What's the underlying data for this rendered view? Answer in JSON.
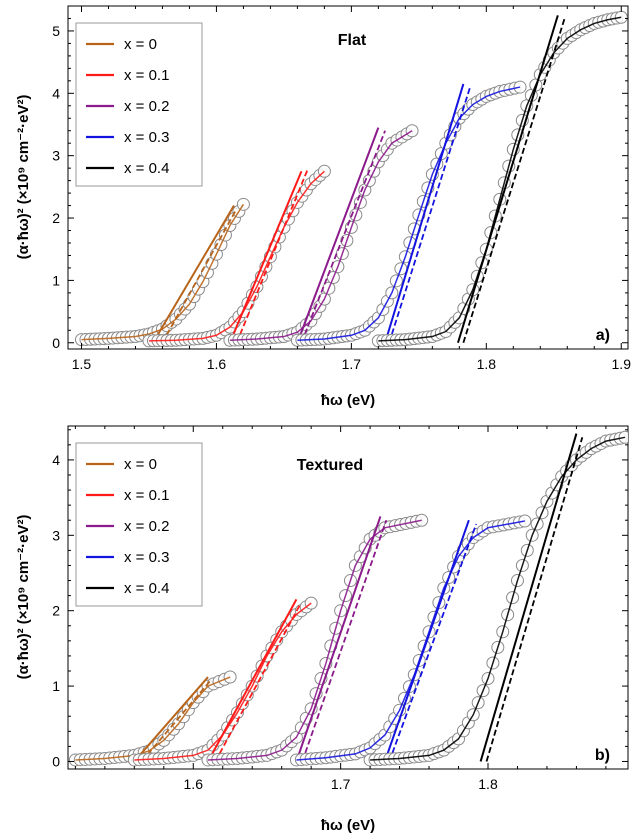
{
  "chart_data": [
    {
      "type": "scatter",
      "title": "Flat",
      "panel_label": "a)",
      "xlabel": "ħω (eV)",
      "ylabel": "(α·ħω)² (×10⁹ cm⁻²·eV²)",
      "xlim": [
        1.49,
        1.905
      ],
      "ylim": [
        -0.1,
        5.4
      ],
      "xticks": [
        1.5,
        1.6,
        1.7,
        1.8,
        1.9
      ],
      "xtick_labels": [
        "1.5",
        "1.6",
        "1.7",
        "1.8",
        "1.9"
      ],
      "yticks": [
        0,
        1,
        2,
        3,
        4,
        5
      ],
      "ytick_labels": [
        "0",
        "1",
        "2",
        "3",
        "4",
        "5"
      ],
      "legend_position": "top-left",
      "grid": false,
      "series": [
        {
          "name": "x = 0",
          "color": "#b8651b",
          "points": [
            [
              1.5,
              0.05
            ],
            [
              1.52,
              0.07
            ],
            [
              1.54,
              0.1
            ],
            [
              1.55,
              0.14
            ],
            [
              1.56,
              0.22
            ],
            [
              1.57,
              0.38
            ],
            [
              1.58,
              0.62
            ],
            [
              1.59,
              0.98
            ],
            [
              1.6,
              1.42
            ],
            [
              1.61,
              1.88
            ],
            [
              1.62,
              2.22
            ]
          ],
          "fit_solid": [
            [
              1.553,
              0.0
            ],
            [
              1.613,
              2.2
            ]
          ],
          "fit_dashed": [
            [
              1.56,
              0.0
            ],
            [
              1.615,
              2.15
            ]
          ]
        },
        {
          "name": "x = 0.1",
          "color": "#ff1a1a",
          "points": [
            [
              1.55,
              0.03
            ],
            [
              1.57,
              0.04
            ],
            [
              1.59,
              0.07
            ],
            [
              1.6,
              0.12
            ],
            [
              1.61,
              0.25
            ],
            [
              1.62,
              0.5
            ],
            [
              1.63,
              0.9
            ],
            [
              1.64,
              1.38
            ],
            [
              1.65,
              1.85
            ],
            [
              1.66,
              2.25
            ],
            [
              1.67,
              2.55
            ],
            [
              1.68,
              2.75
            ]
          ],
          "fit_solid": [
            [
              1.61,
              0.0
            ],
            [
              1.663,
              2.75
            ]
          ],
          "fit_dashed": [
            [
              1.615,
              0.0
            ],
            [
              1.668,
              2.8
            ]
          ]
        },
        {
          "name": "x = 0.2",
          "color": "#8b1a8b",
          "points": [
            [
              1.61,
              0.04
            ],
            [
              1.63,
              0.06
            ],
            [
              1.65,
              0.1
            ],
            [
              1.66,
              0.17
            ],
            [
              1.67,
              0.35
            ],
            [
              1.68,
              0.7
            ],
            [
              1.69,
              1.22
            ],
            [
              1.7,
              1.85
            ],
            [
              1.71,
              2.45
            ],
            [
              1.72,
              2.9
            ],
            [
              1.73,
              3.2
            ],
            [
              1.745,
              3.4
            ]
          ],
          "fit_solid": [
            [
              1.66,
              0.0
            ],
            [
              1.72,
              3.45
            ]
          ],
          "fit_dashed": [
            [
              1.663,
              0.0
            ],
            [
              1.725,
              3.4
            ]
          ]
        },
        {
          "name": "x = 0.3",
          "color": "#1414e0",
          "points": [
            [
              1.66,
              0.04
            ],
            [
              1.68,
              0.06
            ],
            [
              1.7,
              0.12
            ],
            [
              1.71,
              0.2
            ],
            [
              1.72,
              0.4
            ],
            [
              1.73,
              0.8
            ],
            [
              1.74,
              1.38
            ],
            [
              1.75,
              2.05
            ],
            [
              1.76,
              2.7
            ],
            [
              1.77,
              3.2
            ],
            [
              1.78,
              3.6
            ],
            [
              1.79,
              3.82
            ],
            [
              1.8,
              3.95
            ],
            [
              1.81,
              4.03
            ],
            [
              1.825,
              4.1
            ]
          ],
          "fit_solid": [
            [
              1.725,
              0.0
            ],
            [
              1.783,
              4.15
            ]
          ],
          "fit_dashed": [
            [
              1.728,
              0.0
            ],
            [
              1.788,
              4.1
            ]
          ]
        },
        {
          "name": "x = 0.4",
          "color": "#000000",
          "points": [
            [
              1.72,
              0.03
            ],
            [
              1.74,
              0.05
            ],
            [
              1.76,
              0.1
            ],
            [
              1.77,
              0.18
            ],
            [
              1.78,
              0.4
            ],
            [
              1.79,
              0.85
            ],
            [
              1.8,
              1.5
            ],
            [
              1.81,
              2.3
            ],
            [
              1.82,
              3.1
            ],
            [
              1.83,
              3.8
            ],
            [
              1.84,
              4.3
            ],
            [
              1.85,
              4.65
            ],
            [
              1.86,
              4.88
            ],
            [
              1.87,
              5.02
            ],
            [
              1.88,
              5.12
            ],
            [
              1.89,
              5.18
            ],
            [
              1.9,
              5.22
            ]
          ],
          "fit_solid": [
            [
              1.779,
              0.0
            ],
            [
              1.853,
              5.25
            ]
          ],
          "fit_dashed": [
            [
              1.783,
              0.0
            ],
            [
              1.858,
              5.2
            ]
          ]
        }
      ]
    },
    {
      "type": "scatter",
      "title": "Textured",
      "panel_label": "b)",
      "xlabel": "ħω (eV)",
      "ylabel": "(α·ħω)² (×10⁹ cm⁻²·eV²)",
      "xlim": [
        1.515,
        1.895
      ],
      "ylim": [
        -0.1,
        4.45
      ],
      "xticks": [
        1.6,
        1.7,
        1.8
      ],
      "xtick_labels": [
        "1.6",
        "1.7",
        "1.8"
      ],
      "yticks": [
        0,
        1,
        2,
        3,
        4
      ],
      "ytick_labels": [
        "0",
        "1",
        "2",
        "3",
        "4"
      ],
      "legend_position": "top-left",
      "grid": false,
      "series": [
        {
          "name": "x = 0",
          "color": "#b8651b",
          "points": [
            [
              1.52,
              0.02
            ],
            [
              1.54,
              0.04
            ],
            [
              1.56,
              0.08
            ],
            [
              1.57,
              0.14
            ],
            [
              1.58,
              0.28
            ],
            [
              1.59,
              0.5
            ],
            [
              1.6,
              0.78
            ],
            [
              1.61,
              1.0
            ],
            [
              1.625,
              1.12
            ]
          ],
          "fit_solid": [
            [
              1.56,
              0.0
            ],
            [
              1.61,
              1.12
            ]
          ],
          "fit_dashed": [
            [
              1.565,
              0.0
            ],
            [
              1.612,
              1.08
            ]
          ]
        },
        {
          "name": "x = 0.1",
          "color": "#ff1a1a",
          "points": [
            [
              1.56,
              0.02
            ],
            [
              1.58,
              0.04
            ],
            [
              1.6,
              0.08
            ],
            [
              1.61,
              0.15
            ],
            [
              1.62,
              0.35
            ],
            [
              1.63,
              0.65
            ],
            [
              1.64,
              1.0
            ],
            [
              1.65,
              1.4
            ],
            [
              1.66,
              1.72
            ],
            [
              1.67,
              1.95
            ],
            [
              1.68,
              2.1
            ]
          ],
          "fit_solid": [
            [
              1.61,
              0.0
            ],
            [
              1.67,
              2.15
            ]
          ],
          "fit_dashed": [
            [
              1.615,
              0.0
            ],
            [
              1.673,
              2.1
            ]
          ]
        },
        {
          "name": "x = 0.2",
          "color": "#8b1a8b",
          "points": [
            [
              1.61,
              0.02
            ],
            [
              1.63,
              0.04
            ],
            [
              1.65,
              0.08
            ],
            [
              1.66,
              0.15
            ],
            [
              1.67,
              0.32
            ],
            [
              1.68,
              0.7
            ],
            [
              1.69,
              1.3
            ],
            [
              1.7,
              2.0
            ],
            [
              1.71,
              2.6
            ],
            [
              1.72,
              2.95
            ],
            [
              1.73,
              3.1
            ],
            [
              1.755,
              3.2
            ]
          ],
          "fit_solid": [
            [
              1.67,
              0.0
            ],
            [
              1.727,
              3.25
            ]
          ],
          "fit_dashed": [
            [
              1.674,
              0.0
            ],
            [
              1.731,
              3.2
            ]
          ]
        },
        {
          "name": "x = 0.3",
          "color": "#1414e0",
          "points": [
            [
              1.67,
              0.02
            ],
            [
              1.69,
              0.05
            ],
            [
              1.71,
              0.1
            ],
            [
              1.72,
              0.18
            ],
            [
              1.73,
              0.35
            ],
            [
              1.74,
              0.68
            ],
            [
              1.75,
              1.15
            ],
            [
              1.76,
              1.72
            ],
            [
              1.77,
              2.3
            ],
            [
              1.78,
              2.72
            ],
            [
              1.79,
              2.97
            ],
            [
              1.8,
              3.1
            ],
            [
              1.825,
              3.19
            ]
          ],
          "fit_solid": [
            [
              1.73,
              0.0
            ],
            [
              1.787,
              3.2
            ]
          ],
          "fit_dashed": [
            [
              1.733,
              0.0
            ],
            [
              1.792,
              3.15
            ]
          ]
        },
        {
          "name": "x = 0.4",
          "color": "#000000",
          "points": [
            [
              1.72,
              0.02
            ],
            [
              1.74,
              0.04
            ],
            [
              1.76,
              0.08
            ],
            [
              1.77,
              0.15
            ],
            [
              1.78,
              0.3
            ],
            [
              1.79,
              0.62
            ],
            [
              1.8,
              1.1
            ],
            [
              1.81,
              1.72
            ],
            [
              1.82,
              2.4
            ],
            [
              1.83,
              3.0
            ],
            [
              1.84,
              3.45
            ],
            [
              1.85,
              3.78
            ],
            [
              1.86,
              4.0
            ],
            [
              1.87,
              4.15
            ],
            [
              1.88,
              4.25
            ],
            [
              1.893,
              4.3
            ]
          ],
          "fit_solid": [
            [
              1.795,
              0.0
            ],
            [
              1.86,
              4.35
            ]
          ],
          "fit_dashed": [
            [
              1.799,
              0.0
            ],
            [
              1.864,
              4.3
            ]
          ]
        }
      ]
    }
  ]
}
